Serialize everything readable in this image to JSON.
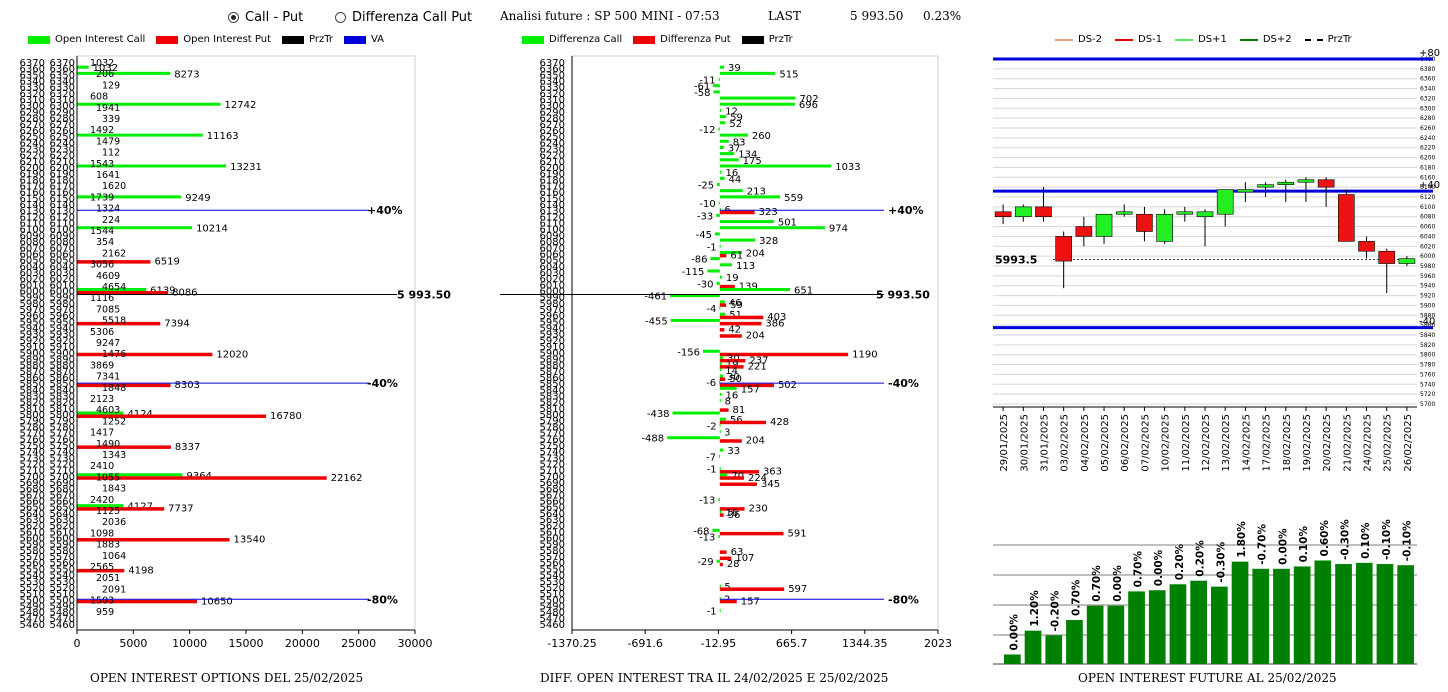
{
  "header": {
    "radio1": "Call - Put",
    "radio2": "Differenza Call Put",
    "title": "Analisi future : SP 500 MINI - 07:53",
    "last_label": "LAST",
    "last_value": "5 993.50",
    "last_pct": "0.23%"
  },
  "colors": {
    "call": "#00ee00",
    "put": "#ee0000",
    "priceline": "#000000",
    "va": "#0000dd",
    "futbar": "#008000"
  },
  "chart_data": [
    {
      "type": "bar",
      "title": "OPEN INTEREST OPTIONS DEL 25/02/2025",
      "legend": [
        "Open Interest Call",
        "Open Interest Put",
        "PrzTr",
        "VA"
      ],
      "strikes": [
        6370,
        6360,
        6350,
        6340,
        6330,
        6320,
        6310,
        6300,
        6290,
        6280,
        6270,
        6260,
        6250,
        6240,
        6230,
        6220,
        6210,
        6200,
        6190,
        6180,
        6170,
        6160,
        6150,
        6140,
        6130,
        6120,
        6110,
        6100,
        6090,
        6080,
        6070,
        6060,
        6050,
        6040,
        6030,
        6020,
        6010,
        6000,
        5990,
        5980,
        5970,
        5960,
        5950,
        5940,
        5930,
        5920,
        5910,
        5900,
        5890,
        5880,
        5870,
        5860,
        5850,
        5840,
        5830,
        5820,
        5810,
        5800,
        5790,
        5780,
        5770,
        5760,
        5750,
        5740,
        5730,
        5720,
        5710,
        5700,
        5690,
        5680,
        5670,
        5660,
        5650,
        5640,
        5630,
        5620,
        5610,
        5600,
        5590,
        5580,
        5570,
        5560,
        5550,
        5540,
        5530,
        5520,
        5510,
        5500,
        5490,
        5480,
        5470,
        5460
      ],
      "call": [
        null,
        1032,
        8273,
        null,
        null,
        null,
        null,
        12742,
        null,
        null,
        null,
        null,
        11163,
        null,
        null,
        null,
        null,
        13231,
        null,
        null,
        null,
        null,
        9249,
        null,
        null,
        null,
        null,
        10214,
        null,
        null,
        null,
        null,
        null,
        null,
        null,
        null,
        null,
        6139,
        null,
        null,
        null,
        null,
        null,
        null,
        null,
        null,
        null,
        null,
        null,
        null,
        null,
        null,
        null,
        null,
        null,
        null,
        null,
        4124,
        null,
        null,
        null,
        null,
        null,
        null,
        null,
        null,
        null,
        9364,
        null,
        null,
        null,
        null,
        4127,
        null,
        null,
        null,
        null,
        null,
        null,
        null,
        null,
        null,
        null,
        null,
        null,
        null,
        null,
        null,
        null,
        null,
        null,
        null
      ],
      "put": [
        null,
        null,
        null,
        null,
        null,
        null,
        null,
        null,
        null,
        null,
        null,
        null,
        null,
        null,
        null,
        null,
        null,
        null,
        null,
        null,
        null,
        null,
        null,
        null,
        null,
        null,
        null,
        null,
        null,
        null,
        null,
        null,
        6519,
        null,
        null,
        null,
        null,
        8086,
        null,
        null,
        null,
        null,
        7394,
        null,
        null,
        null,
        null,
        12020,
        null,
        null,
        null,
        null,
        8303,
        null,
        null,
        null,
        null,
        16780,
        null,
        null,
        null,
        null,
        8337,
        null,
        null,
        null,
        null,
        22162,
        null,
        null,
        null,
        null,
        7737,
        null,
        null,
        null,
        null,
        13540,
        null,
        null,
        null,
        null,
        4198,
        null,
        null,
        null,
        null,
        10650,
        null,
        null,
        null,
        null
      ],
      "xlim": [
        0,
        30000
      ],
      "xticks": [
        "0",
        "5000",
        "10000",
        "15000",
        "20000",
        "25000",
        "30000"
      ],
      "price_line": {
        "strike": 5993.5,
        "label": "5 993.50"
      },
      "va_lines": [
        {
          "strike": 6130,
          "label": "+40%"
        },
        {
          "strike": 5850,
          "label": "-40%"
        },
        {
          "strike": 5500,
          "label": "-80%"
        }
      ],
      "small_labels": [
        "1032",
        "206",
        "129",
        "608",
        "1941",
        "339",
        "1492",
        "1479",
        "112",
        "1543",
        "1641",
        "1620",
        "1739",
        "1324",
        "224",
        "1544",
        "354",
        "2162",
        "3056",
        "4609",
        "4654",
        "1116",
        "7085",
        "5518",
        "5306",
        "9247",
        "1476",
        "3869",
        "7341",
        "1848",
        "2123",
        "4603",
        "1252",
        "1417",
        "1490",
        "1343",
        "2410",
        "1055",
        "1843",
        "2420",
        "1125",
        "2036",
        "1098",
        "1883",
        "1064",
        "2565",
        "2051",
        "2091",
        "1503",
        "959"
      ]
    },
    {
      "type": "bar",
      "title": "DIFF. OPEN INTEREST TRA IL 24/02/2025 E 25/02/2025",
      "legend": [
        "Differenza Call",
        "Differenza Put",
        "PrzTr"
      ],
      "xticks": [
        "-1370.25",
        "-691.6",
        "-12.95",
        "665.7",
        "1344.35",
        "2023"
      ],
      "xlim": [
        -1370.25,
        2023
      ],
      "call": [
        null,
        39,
        515,
        -11,
        -61,
        -58,
        702,
        696,
        12,
        59,
        52,
        -12,
        260,
        83,
        37,
        134,
        175,
        1033,
        16,
        44,
        -25,
        213,
        559,
        -10,
        6,
        -33,
        501,
        974,
        -45,
        328,
        -1,
        204,
        -86,
        113,
        -115,
        19,
        -30,
        651,
        -461,
        46,
        -4,
        51,
        -455,
        null,
        null,
        null,
        null,
        -156,
        30,
        19,
        14,
        30,
        -6,
        157,
        16,
        8,
        null,
        -438,
        56,
        -2,
        3,
        -488,
        null,
        33,
        -7,
        null,
        -1,
        70,
        null,
        null,
        null,
        -13,
        null,
        16,
        null,
        null,
        -68,
        -13,
        null,
        null,
        null,
        -29,
        null,
        null,
        null,
        5,
        null,
        2,
        null,
        -1
      ],
      "put": [
        null,
        null,
        null,
        null,
        null,
        null,
        null,
        null,
        null,
        null,
        null,
        null,
        null,
        null,
        null,
        null,
        null,
        null,
        null,
        null,
        null,
        null,
        null,
        null,
        323,
        null,
        null,
        null,
        null,
        null,
        null,
        61,
        null,
        null,
        null,
        null,
        139,
        null,
        null,
        59,
        null,
        403,
        386,
        42,
        204,
        null,
        null,
        1190,
        237,
        221,
        null,
        50,
        502,
        null,
        null,
        null,
        81,
        null,
        428,
        null,
        null,
        204,
        null,
        null,
        null,
        null,
        363,
        224,
        345,
        null,
        null,
        null,
        230,
        36,
        null,
        null,
        591,
        null,
        null,
        63,
        107,
        28,
        null,
        null,
        null,
        597,
        null,
        157,
        null,
        null
      ],
      "price_line": {
        "strike": 5993.5,
        "label": "5 993.50"
      },
      "va_lines": [
        {
          "strike": 6130,
          "label": "+40%"
        },
        {
          "strike": 5850,
          "label": "-40%"
        },
        {
          "strike": 5500,
          "label": "-80%"
        }
      ]
    },
    {
      "type": "candlestick",
      "title": "OPEN INTEREST FUTURE AL 25/02/2025",
      "legend": [
        "DS-2",
        "DS-1",
        "DS+1",
        "DS+2",
        "PrzTr"
      ],
      "dates": [
        "29/01/2025",
        "30/01/2025",
        "31/01/2025",
        "03/02/2025",
        "04/02/2025",
        "05/02/2025",
        "06/02/2025",
        "07/02/2025",
        "10/02/2025",
        "11/02/2025",
        "12/02/2025",
        "13/02/2025",
        "14/02/2025",
        "17/02/2025",
        "18/02/2025",
        "19/02/2025",
        "20/02/2025",
        "21/02/2025",
        "24/02/2025",
        "25/02/2025",
        "26/02/2025"
      ],
      "ohlc": [
        [
          6090,
          6105,
          6065,
          6080
        ],
        [
          6080,
          6105,
          6070,
          6100
        ],
        [
          6100,
          6140,
          6070,
          6080
        ],
        [
          6040,
          6050,
          5935,
          5990
        ],
        [
          6060,
          6080,
          6020,
          6040
        ],
        [
          6040,
          6080,
          6025,
          6085
        ],
        [
          6085,
          6105,
          6080,
          6090
        ],
        [
          6085,
          6100,
          6030,
          6050
        ],
        [
          6030,
          6095,
          6025,
          6085
        ],
        [
          6085,
          6100,
          6070,
          6090
        ],
        [
          6080,
          6095,
          6020,
          6090
        ],
        [
          6085,
          6135,
          6060,
          6135
        ],
        [
          6130,
          6150,
          6110,
          6135
        ],
        [
          6140,
          6150,
          6120,
          6145
        ],
        [
          6145,
          6155,
          6110,
          6150
        ],
        [
          6150,
          6160,
          6110,
          6155
        ],
        [
          6155,
          6160,
          6100,
          6140
        ],
        [
          6125,
          6135,
          6030,
          6030
        ],
        [
          6030,
          6040,
          5995,
          6010
        ],
        [
          6010,
          6015,
          5925,
          5985
        ],
        [
          5985,
          6000,
          5980,
          5995
        ]
      ],
      "ylim": [
        5700,
        6400
      ],
      "yticks": [
        "6400",
        "6380",
        "6360",
        "6340",
        "6320",
        "6300",
        "6280",
        "6260",
        "6240",
        "6220",
        "6200",
        "6180",
        "6160",
        "6140",
        "6120",
        "6100",
        "6080",
        "6060",
        "6040",
        "6020",
        "6000",
        "5980",
        "5960",
        "5940",
        "5920",
        "5900",
        "5880",
        "5860",
        "5840",
        "5820",
        "5800",
        "5780",
        "5760",
        "5740",
        "5720",
        "5700"
      ],
      "bands": [
        {
          "value": 6400,
          "label": "+80"
        },
        {
          "value": 6132,
          "label": "+40"
        },
        {
          "value": 5855,
          "label": "-40"
        }
      ],
      "price": {
        "value": 5993.5,
        "label": "5993.5"
      },
      "oi_pct": [
        "0.00%",
        "1.20%",
        "-0.20%",
        "0.70%",
        "0.70%",
        "0.00%",
        "0.70%",
        "0.00%",
        "0.20%",
        "0.20%",
        "-0.30%",
        "1.80%",
        "-0.70%",
        "0.00%",
        "0.10%",
        "0.60%",
        "-0.30%",
        "0.10%",
        "-0.10%",
        "-0.10%"
      ],
      "oi_level": [
        0.08,
        0.28,
        0.24,
        0.37,
        0.49,
        0.49,
        0.61,
        0.62,
        0.67,
        0.7,
        0.65,
        0.86,
        0.8,
        0.8,
        0.82,
        0.87,
        0.84,
        0.85,
        0.84,
        0.83
      ]
    }
  ]
}
